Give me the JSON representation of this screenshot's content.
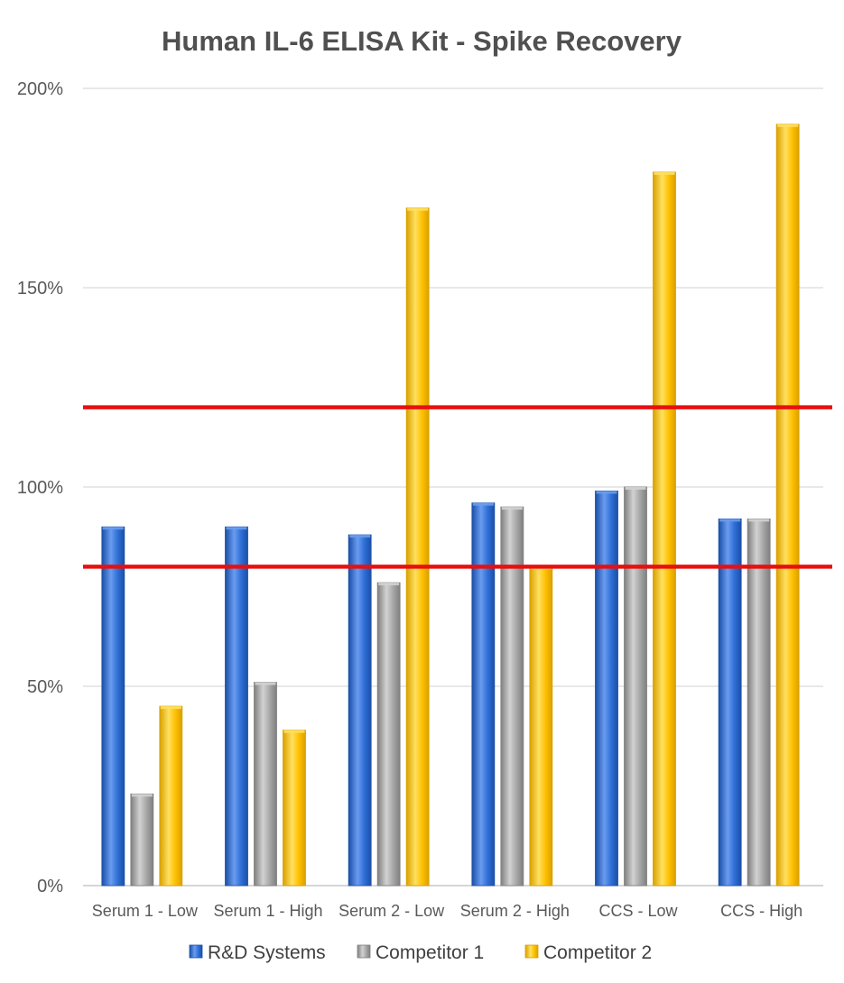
{
  "chart_data": {
    "type": "bar",
    "title": "Human IL-6 ELISA Kit - Spike Recovery",
    "xlabel": "",
    "ylabel": "",
    "categories": [
      "Serum 1 - Low",
      "Serum 1 - High",
      "Serum 2 - Low",
      "Serum 2 - High",
      "CCS - Low",
      "CCS - High"
    ],
    "series": [
      {
        "name": "R&D Systems",
        "values": [
          90,
          90,
          88,
          96,
          99,
          92
        ]
      },
      {
        "name": "Competitor 1",
        "values": [
          23,
          51,
          76,
          95,
          100,
          92
        ]
      },
      {
        "name": "Competitor 2",
        "values": [
          45,
          39,
          170,
          80,
          179,
          191
        ]
      }
    ],
    "ylim": [
      0,
      200
    ],
    "yticks": [
      0,
      50,
      100,
      150,
      200
    ],
    "ytick_labels": [
      "0%",
      "50%",
      "100%",
      "150%",
      "200%"
    ],
    "reference_lines": [
      80,
      120
    ],
    "reference_line_color": "#e81010",
    "grid": true,
    "legend": "bottom",
    "colors": {
      "R&D Systems": {
        "base": "#2f6fd6",
        "dark": "#1a4fa8",
        "light": "#6a9cf0"
      },
      "Competitor 1": {
        "base": "#a6a6a6",
        "dark": "#7f7f7f",
        "light": "#d2d2d2"
      },
      "Competitor 2": {
        "base": "#ffc000",
        "dark": "#d9a000",
        "light": "#ffe060"
      }
    }
  }
}
